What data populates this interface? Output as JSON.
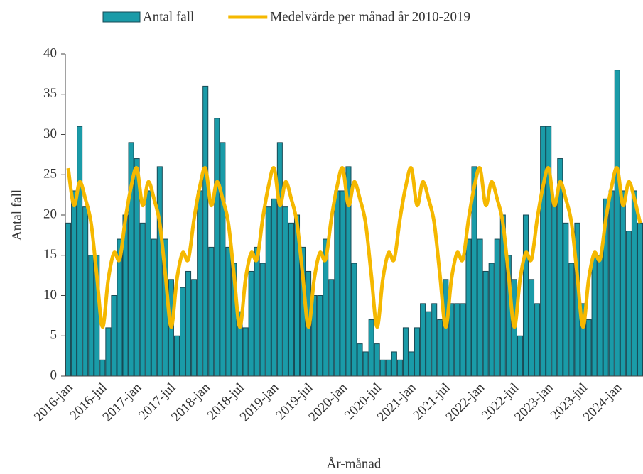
{
  "chart_data": {
    "type": "bar",
    "xlabel": "År-månad",
    "ylabel": "Antal fall",
    "categories": [
      "2016-jan",
      null,
      null,
      null,
      null,
      null,
      "2016-jul",
      null,
      null,
      null,
      null,
      null,
      "2017-jan",
      null,
      null,
      null,
      null,
      null,
      "2017-jul",
      null,
      null,
      null,
      null,
      null,
      "2018-jan",
      null,
      null,
      null,
      null,
      null,
      "2018-jul",
      null,
      null,
      null,
      null,
      null,
      "2019-jan",
      null,
      null,
      null,
      null,
      null,
      "2019-jul",
      null,
      null,
      null,
      null,
      null,
      "2020-jan",
      null,
      null,
      null,
      null,
      null,
      "2020-jul",
      null,
      null,
      null,
      null,
      null,
      "2021-jan",
      null,
      null,
      null,
      null,
      null,
      "2021-jul",
      null,
      null,
      null,
      null,
      null,
      "2022-jan",
      null,
      null,
      null,
      null,
      null,
      "2022-jul",
      null,
      null,
      null,
      null,
      null,
      "2023-jan",
      null,
      null,
      null,
      null,
      null,
      "2023-jul",
      null,
      null,
      null,
      null,
      null,
      "2024-jan",
      null,
      null,
      null,
      null
    ],
    "series": [
      {
        "name": "Antal fall",
        "type": "bar",
        "color": "#1a9ba8",
        "edgecolor": "#174a55",
        "values": [
          19,
          23,
          31,
          21,
          15,
          15,
          2,
          6,
          10,
          17,
          20,
          29,
          27,
          19,
          23,
          17,
          26,
          17,
          12,
          5,
          11,
          13,
          12,
          23,
          36,
          16,
          32,
          29,
          16,
          14,
          8,
          6,
          13,
          16,
          14,
          21,
          22,
          29,
          21,
          19,
          20,
          16,
          13,
          10,
          10,
          17,
          12,
          23,
          23,
          26,
          14,
          4,
          3,
          7,
          4,
          2,
          2,
          3,
          2,
          6,
          3,
          6,
          9,
          8,
          9,
          7,
          12,
          9,
          9,
          9,
          17,
          26,
          17,
          13,
          14,
          17,
          20,
          15,
          12,
          5,
          20,
          12,
          9,
          31,
          31,
          22,
          27,
          19,
          14,
          19,
          9,
          7,
          15,
          15,
          22,
          23,
          38,
          23,
          18,
          23,
          19
        ]
      },
      {
        "name": "Medelvärde per månad år 2010-2019",
        "type": "line",
        "color": "#f5b800",
        "values": [
          25.8,
          21.2,
          24.1,
          22,
          19,
          12.5,
          6.1,
          12,
          15.3,
          14.5,
          19.5,
          23.5,
          25.8,
          21.2,
          24.1,
          22,
          19,
          12.5,
          6.1,
          12,
          15.3,
          14.5,
          19.5,
          23.5,
          25.8,
          21.2,
          24.1,
          22,
          19,
          12.5,
          6.1,
          12,
          15.3,
          14.5,
          19.5,
          23.5,
          25.8,
          21.2,
          24.1,
          22,
          19,
          12.5,
          6.1,
          12,
          15.3,
          14.5,
          19.5,
          23.5,
          25.8,
          21.2,
          24.1,
          22,
          19,
          12.5,
          6.1,
          12,
          15.3,
          14.5,
          19.5,
          23.5,
          25.8,
          21.2,
          24.1,
          22,
          19,
          12.5,
          6.1,
          12,
          15.3,
          14.5,
          19.5,
          23.5,
          25.8,
          21.2,
          24.1,
          22,
          19,
          12.5,
          6.1,
          12,
          15.3,
          14.5,
          19.5,
          23.5,
          25.8,
          21.2,
          24.1,
          22,
          19,
          12.5,
          6.1,
          12,
          15.3,
          14.5,
          19.5,
          23.5,
          25.8,
          21.2,
          24.1,
          22,
          19
        ]
      }
    ],
    "ylim": [
      0,
      40
    ],
    "yticks": [
      0,
      5,
      10,
      15,
      20,
      25,
      30,
      35,
      40
    ],
    "grid": false,
    "legend": "top"
  }
}
